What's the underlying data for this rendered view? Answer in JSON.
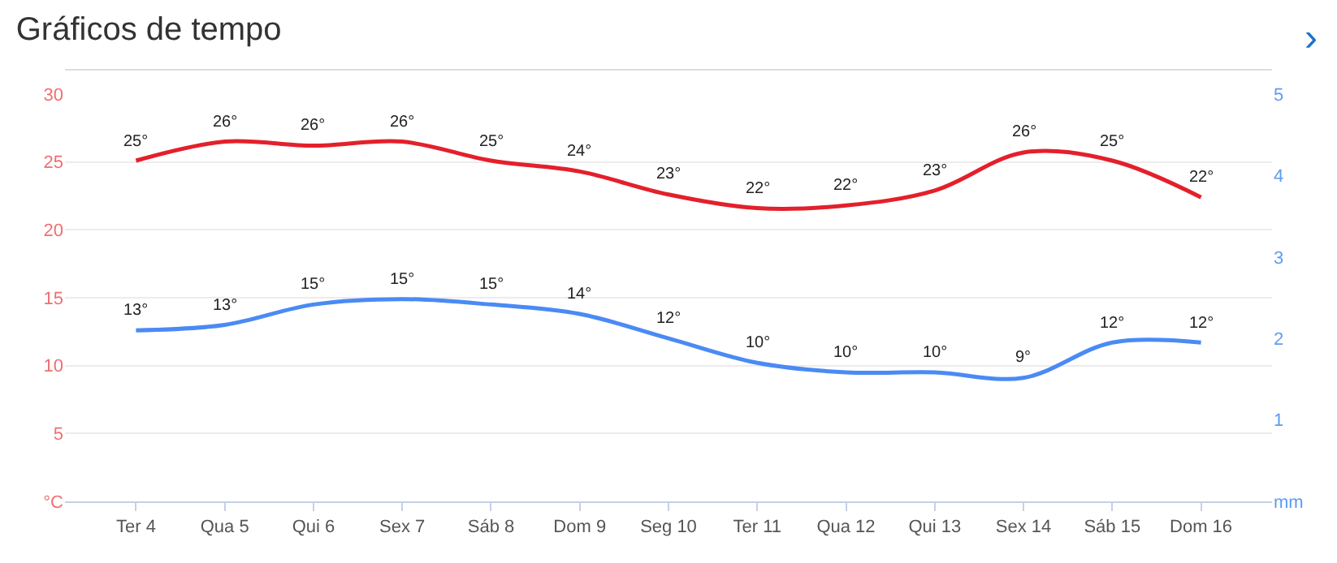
{
  "chart_data": {
    "type": "line",
    "title": "Gráficos de tempo",
    "annotations": [
      "›"
    ],
    "categories": [
      "Ter 4",
      "Qua 5",
      "Qui 6",
      "Sex 7",
      "Sáb 8",
      "Dom 9",
      "Seg 10",
      "Ter 11",
      "Qua 12",
      "Qui 13",
      "Sex 14",
      "Sáb 15",
      "Dom 16"
    ],
    "series": [
      {
        "color": "#e3202b",
        "values": [
          25.1,
          26.5,
          26.2,
          26.5,
          25.1,
          24.3,
          22.6,
          21.6,
          21.8,
          22.9,
          25.7,
          25.1,
          22.4
        ],
        "value_labels": [
          "25°",
          "26°",
          "26°",
          "26°",
          "25°",
          "24°",
          "23°",
          "22°",
          "22°",
          "23°",
          "26°",
          "25°",
          "22°"
        ]
      },
      {
        "color": "#4a8af4",
        "values": [
          12.6,
          13.0,
          14.5,
          14.9,
          14.5,
          13.8,
          12.0,
          10.2,
          9.5,
          9.5,
          9.1,
          11.7,
          11.7
        ],
        "value_labels": [
          "13°",
          "13°",
          "15°",
          "15°",
          "15°",
          "14°",
          "12°",
          "10°",
          "10°",
          "10°",
          "9°",
          "12°",
          "12°"
        ]
      }
    ],
    "ylim": [
      0,
      30
    ],
    "yticks": [
      {
        "value": 0,
        "label": "°C"
      },
      5,
      10,
      15,
      20,
      25,
      30
    ],
    "y2lim": [
      0,
      5
    ],
    "y2ticks": [
      {
        "value": 0,
        "label": "mm"
      },
      1,
      2,
      3,
      4,
      5
    ],
    "grid": "y",
    "marker": "none",
    "line_style": "solid"
  }
}
